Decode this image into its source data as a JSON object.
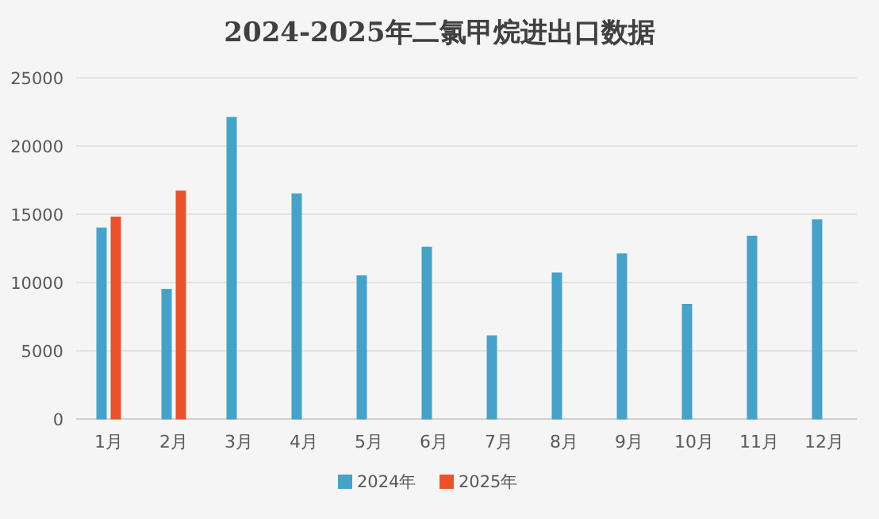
{
  "chart_data": {
    "type": "bar",
    "title": "2024-2025年二氯甲烷进出口数据",
    "categories": [
      "1月",
      "2月",
      "3月",
      "4月",
      "5月",
      "6月",
      "7月",
      "8月",
      "9月",
      "10月",
      "11月",
      "12月"
    ],
    "series": [
      {
        "name": "2024年",
        "color": "#46a2c8",
        "values": [
          14000,
          9500,
          22100,
          16500,
          10500,
          12600,
          6100,
          10700,
          12100,
          8400,
          13400,
          14600
        ]
      },
      {
        "name": "2025年",
        "color": "#e8532e",
        "values": [
          14800,
          16700,
          null,
          null,
          null,
          null,
          null,
          null,
          null,
          null,
          null,
          null
        ]
      }
    ],
    "ylim": [
      0,
      25000
    ],
    "yticks": [
      0,
      5000,
      10000,
      15000,
      20000,
      25000
    ],
    "grid": "y",
    "legend": "bottom"
  }
}
